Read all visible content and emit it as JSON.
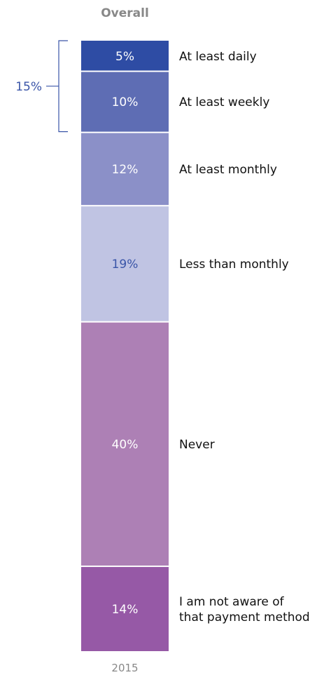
{
  "chart_data": {
    "type": "bar",
    "stacked": true,
    "title": "Overall",
    "categories": [
      "2015"
    ],
    "series": [
      {
        "name": "At least daily",
        "values": [
          5
        ],
        "color": "#2e4ca4",
        "label": "5%",
        "label_color": "#ffffff"
      },
      {
        "name": "At least weekly",
        "values": [
          10
        ],
        "color": "#5e6db4",
        "label": "10%",
        "label_color": "#ffffff"
      },
      {
        "name": "At least monthly",
        "values": [
          12
        ],
        "color": "#8b90c8",
        "label": "12%",
        "label_color": "#ffffff"
      },
      {
        "name": "Less than monthly",
        "values": [
          19
        ],
        "color": "#c0c4e3",
        "label": "19%",
        "label_color": "#3a55a8"
      },
      {
        "name": "Never",
        "values": [
          40
        ],
        "color": "#ad80b5",
        "label": "40%",
        "label_color": "#ffffff"
      },
      {
        "name": "I am not aware of that payment method",
        "values": [
          14
        ],
        "color": "#9659a6",
        "label": "14%",
        "label_color": "#ffffff"
      }
    ],
    "series_label_lines": [
      [
        "At least daily"
      ],
      [
        "At least weekly"
      ],
      [
        "At least monthly"
      ],
      [
        "Less than monthly"
      ],
      [
        "Never"
      ],
      [
        "I am not aware of",
        "that payment method"
      ]
    ],
    "bracket": {
      "label": "15%",
      "spans": [
        "At least daily",
        "At least weekly"
      ],
      "color": "#3a55a8"
    },
    "legend": "right"
  }
}
